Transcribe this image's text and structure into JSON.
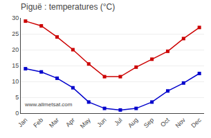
{
  "chart_data": {
    "type": "line",
    "title": "Piguë : temperatures (°C)",
    "categories": [
      "Jan",
      "Feb",
      "Mar",
      "Apr",
      "May",
      "Jun",
      "Jul",
      "Aug",
      "Sep",
      "Oct",
      "Nov",
      "Dec"
    ],
    "series": [
      {
        "color": "#cc0000",
        "marker": "square",
        "values": [
          29,
          27.5,
          24,
          20,
          15.5,
          11.5,
          11.5,
          14.5,
          17,
          19.5,
          23.5,
          27
        ]
      },
      {
        "color": "#0000cc",
        "marker": "square",
        "values": [
          14,
          13,
          11,
          8,
          3.5,
          1.5,
          1,
          1.5,
          3.5,
          7,
          9.5,
          12.5
        ]
      }
    ],
    "ylim": [
      0,
      30
    ],
    "yticks": [
      0,
      5,
      10,
      15,
      20,
      25,
      30
    ],
    "grid": true,
    "annotations": [
      "www.allmetsat.com"
    ]
  }
}
